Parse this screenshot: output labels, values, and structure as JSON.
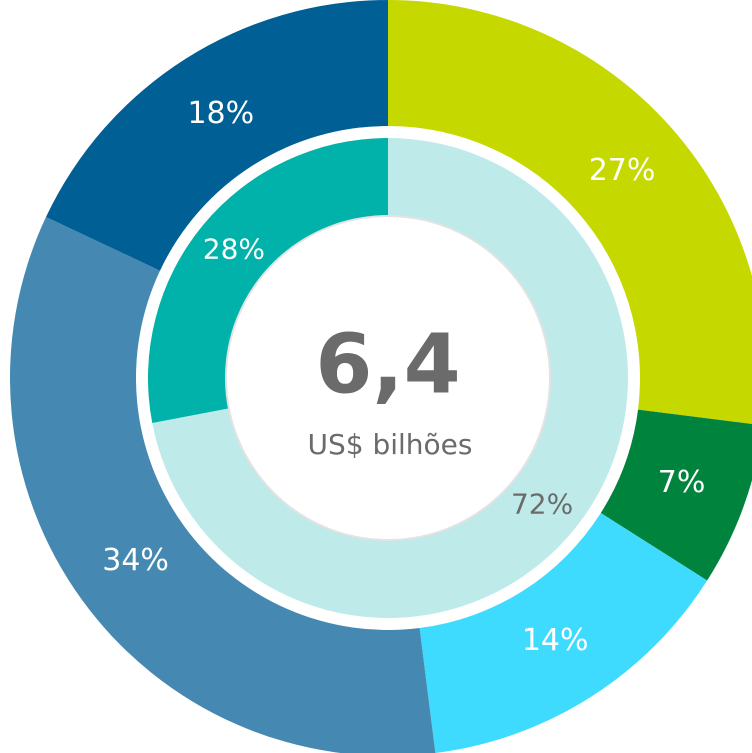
{
  "chart_data": [
    {
      "type": "donut",
      "ring": "outer",
      "values": [
        27,
        7,
        14,
        34,
        18
      ],
      "value_labels": [
        "27%",
        "7%",
        "14%",
        "34%",
        "18%"
      ],
      "colors": [
        "#c5d800",
        "#00843d",
        "#3fdbff",
        "#4589b3",
        "#005f95"
      ]
    },
    {
      "type": "donut",
      "ring": "inner",
      "values": [
        72,
        28
      ],
      "value_labels": [
        "72%",
        "28%"
      ],
      "colors": [
        "#bfeaea",
        "#00b2a9"
      ],
      "center_value": "6,4",
      "center_caption": "US$ bilhões"
    }
  ]
}
